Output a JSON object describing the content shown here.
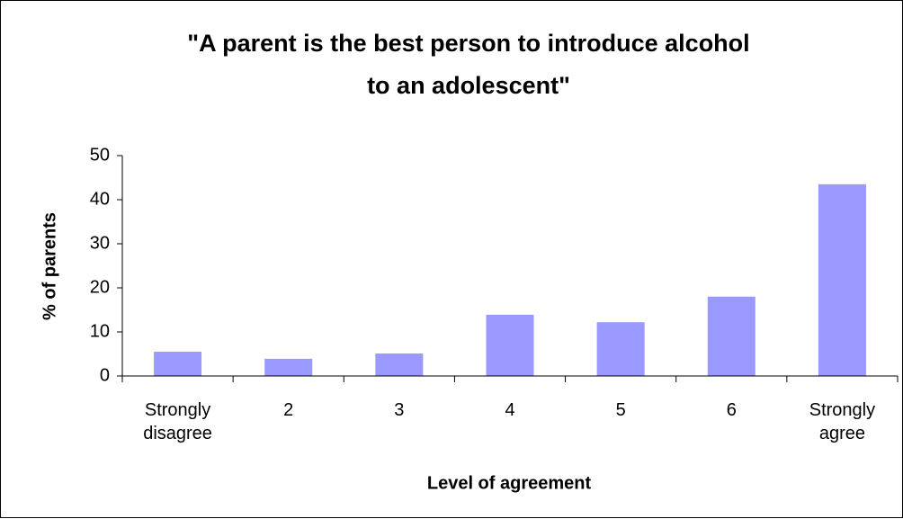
{
  "chart_data": {
    "type": "bar",
    "title": "\"A parent is the best person to introduce alcohol to an adolescent\"",
    "x_label": "Level of agreement",
    "y_label": "% of parents",
    "categories": [
      "Strongly disagree",
      "2",
      "3",
      "4",
      "5",
      "6",
      "Strongly agree"
    ],
    "values": [
      5.5,
      3.9,
      5.1,
      13.9,
      12.2,
      18.0,
      43.5
    ],
    "color": "#9999ff",
    "ylim": [
      0,
      50
    ],
    "yticks": [
      0,
      10,
      20,
      30,
      40,
      50
    ],
    "grid": false
  }
}
